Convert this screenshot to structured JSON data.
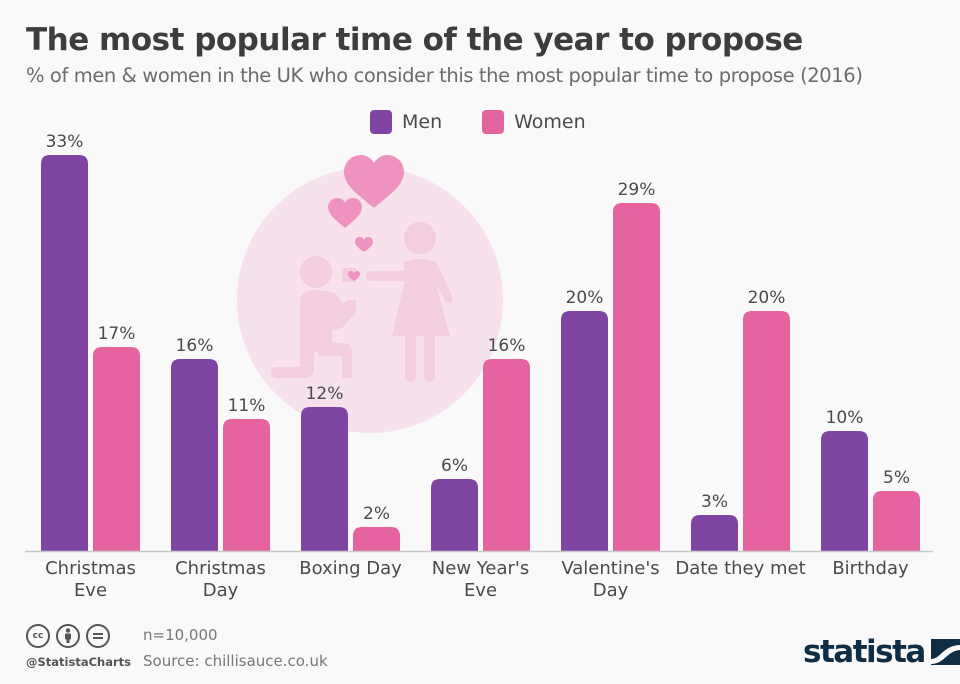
{
  "header": {
    "title": "The most popular time of the year to propose",
    "subtitle": "% of men & women in the UK who consider this the most popular time to propose (2016)"
  },
  "legend": [
    {
      "label": "Men",
      "color": "#7e45a2"
    },
    {
      "label": "Women",
      "color": "#e5649f"
    }
  ],
  "chart_data": {
    "type": "bar",
    "title": "The most popular time of the year to propose",
    "subtitle": "% of men & women in the UK who consider this the most popular time to propose (2016)",
    "xlabel": "",
    "ylabel": "",
    "unit": "%",
    "ylim": [
      0,
      33
    ],
    "grid": false,
    "legend_position": "top-center",
    "categories": [
      [
        "Christmas",
        "Eve"
      ],
      [
        "Christmas",
        "Day"
      ],
      [
        "Boxing Day"
      ],
      [
        "New Year's",
        "Eve"
      ],
      [
        "Valentine's",
        "Day"
      ],
      [
        "Date they met"
      ],
      [
        "Birthday"
      ]
    ],
    "series": [
      {
        "name": "Men",
        "color": "#7e45a2",
        "values": [
          33,
          16,
          12,
          6,
          20,
          3,
          10
        ]
      },
      {
        "name": "Women",
        "color": "#e5649f",
        "values": [
          17,
          11,
          2,
          16,
          29,
          20,
          5
        ]
      }
    ]
  },
  "illustration": {
    "description": "man kneeling proposing to woman with hearts",
    "circle_color": "#f7e1ec",
    "figure_color": "#f3cde0",
    "heart_color": "#ee93bf"
  },
  "footer": {
    "license_icons": [
      "cc-icon",
      "attribution-icon",
      "no-derivatives-icon"
    ],
    "cc_text": "cc",
    "handle": "@StatistaCharts",
    "sample": "n=10,000",
    "source": "Source: chillisauce.co.uk",
    "brand": "statista"
  }
}
